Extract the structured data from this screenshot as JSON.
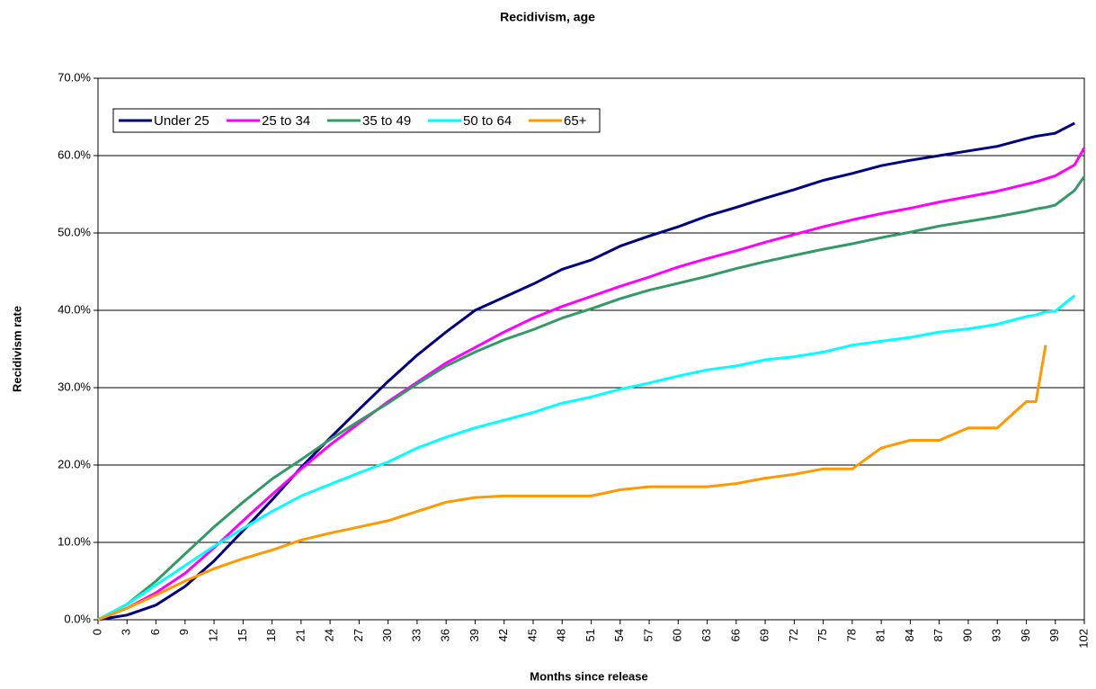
{
  "chart_data": {
    "type": "line",
    "title": "Recidivism, age",
    "x_label": "Months since release",
    "y_label": "Recidivism rate",
    "x": [
      0,
      3,
      6,
      9,
      12,
      15,
      18,
      21,
      24,
      27,
      30,
      33,
      36,
      39,
      42,
      45,
      48,
      51,
      54,
      57,
      60,
      63,
      66,
      69,
      72,
      75,
      78,
      81,
      84,
      87,
      90,
      93,
      96,
      97,
      98,
      99,
      101,
      102
    ],
    "series": [
      {
        "name": "Under 25",
        "color": "#000080",
        "values": [
          0,
          0.6,
          1.9,
          4.3,
          7.6,
          11.5,
          15.5,
          19.7,
          23.5,
          27.2,
          30.8,
          34.2,
          37.2,
          40,
          41.7,
          43.4,
          45.3,
          46.5,
          48.3,
          49.6,
          50.8,
          52.2,
          53.3,
          54.5,
          55.6,
          56.8,
          57.7,
          58.7,
          59.4,
          60,
          60.6,
          61.2,
          62.2,
          62.5,
          62.7,
          62.9,
          64.2,
          null
        ]
      },
      {
        "name": "25 to 34",
        "color": "#ff00ff",
        "values": [
          0,
          1.5,
          3.5,
          6,
          9.3,
          12.8,
          16.2,
          19.5,
          22.6,
          25.4,
          28.2,
          30.7,
          33.2,
          35.2,
          37.2,
          39,
          40.5,
          41.8,
          43.1,
          44.3,
          45.6,
          46.7,
          47.7,
          48.8,
          49.8,
          50.8,
          51.7,
          52.5,
          53.2,
          54,
          54.7,
          55.4,
          56.3,
          56.6,
          57,
          57.4,
          58.8,
          61
        ]
      },
      {
        "name": "35 to 49",
        "color": "#339966",
        "values": [
          0,
          2,
          5,
          8.5,
          12,
          15.2,
          18.2,
          20.7,
          23.3,
          25.7,
          28,
          30.5,
          32.8,
          34.6,
          36.2,
          37.5,
          39,
          40.2,
          41.5,
          42.6,
          43.5,
          44.4,
          45.4,
          46.3,
          47.1,
          47.9,
          48.6,
          49.4,
          50.1,
          50.9,
          51.5,
          52.1,
          52.8,
          53.1,
          53.3,
          53.6,
          55.5,
          57.3
        ]
      },
      {
        "name": "50 to 64",
        "color": "#00ffff",
        "values": [
          0,
          2,
          4.5,
          7,
          9.5,
          11.8,
          14,
          16,
          17.5,
          19,
          20.4,
          22.2,
          23.6,
          24.8,
          25.8,
          26.8,
          28,
          28.8,
          29.8,
          30.6,
          31.5,
          32.3,
          32.8,
          33.6,
          34,
          34.6,
          35.5,
          36,
          36.5,
          37.2,
          37.6,
          38.2,
          39.2,
          39.4,
          39.8,
          39.9,
          41.9,
          null
        ]
      },
      {
        "name": "65+",
        "color": "#ff9900",
        "values": [
          0,
          1.5,
          3.2,
          5,
          6.6,
          7.9,
          9,
          10.3,
          11.2,
          12,
          12.8,
          14,
          15.2,
          15.8,
          16,
          16,
          16,
          16,
          16.8,
          17.2,
          17.2,
          17.2,
          17.6,
          18.3,
          18.8,
          19.5,
          19.5,
          22.2,
          23.2,
          23.2,
          24.8,
          24.8,
          28.2,
          28.2,
          35.5,
          null,
          null,
          null
        ]
      }
    ],
    "xlim": [
      0,
      102
    ],
    "xticks": [
      0,
      3,
      6,
      9,
      12,
      15,
      18,
      21,
      24,
      27,
      30,
      33,
      36,
      39,
      42,
      45,
      48,
      51,
      54,
      57,
      60,
      63,
      66,
      69,
      72,
      75,
      78,
      81,
      84,
      87,
      90,
      93,
      96,
      99,
      102
    ],
    "ylim": [
      0,
      70
    ],
    "yticks": [
      {
        "value": 0,
        "label": "0.0%"
      },
      {
        "value": 10,
        "label": "10.0%"
      },
      {
        "value": 20,
        "label": "20.0%"
      },
      {
        "value": 30,
        "label": "30.0%"
      },
      {
        "value": 40,
        "label": "40.0%"
      },
      {
        "value": 50,
        "label": "50.0%"
      },
      {
        "value": 60,
        "label": "60.0%"
      },
      {
        "value": 70,
        "label": "70.0%"
      }
    ],
    "grid": true,
    "legend": "upper left"
  }
}
